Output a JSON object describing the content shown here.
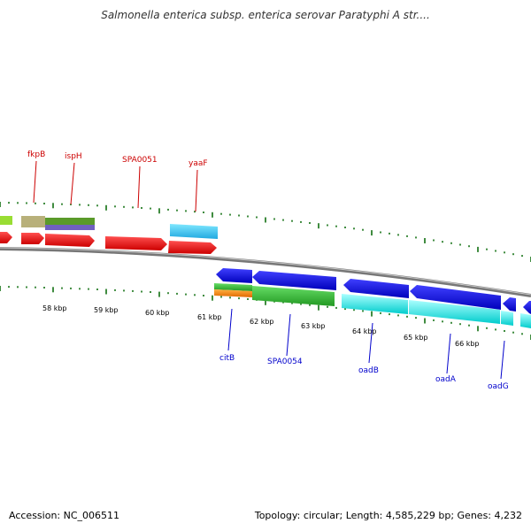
{
  "title": "Salmonella enterica subsp. enterica serovar Paratyphi A str....",
  "footer": {
    "accession": "Accession: NC_006511",
    "stats": "Topology: circular; Length: 4,585,229 bp; Genes: 4,232"
  },
  "colors": {
    "forward_label": "#cc0000",
    "reverse_label": "#0000cc",
    "tick": "#006600",
    "backbone": "#888888"
  },
  "scale_labels": [
    "58 kbp",
    "59 kbp",
    "60 kbp",
    "61 kbp",
    "62 kbp",
    "63 kbp",
    "64 kbp",
    "65 kbp",
    "66 kbp"
  ],
  "forward_gene_labels": [
    "fkpB",
    "ispH",
    "SPA0051",
    "yaaF"
  ],
  "reverse_gene_labels": [
    "citB",
    "SPA0054",
    "oadB",
    "oadA",
    "oadG"
  ]
}
